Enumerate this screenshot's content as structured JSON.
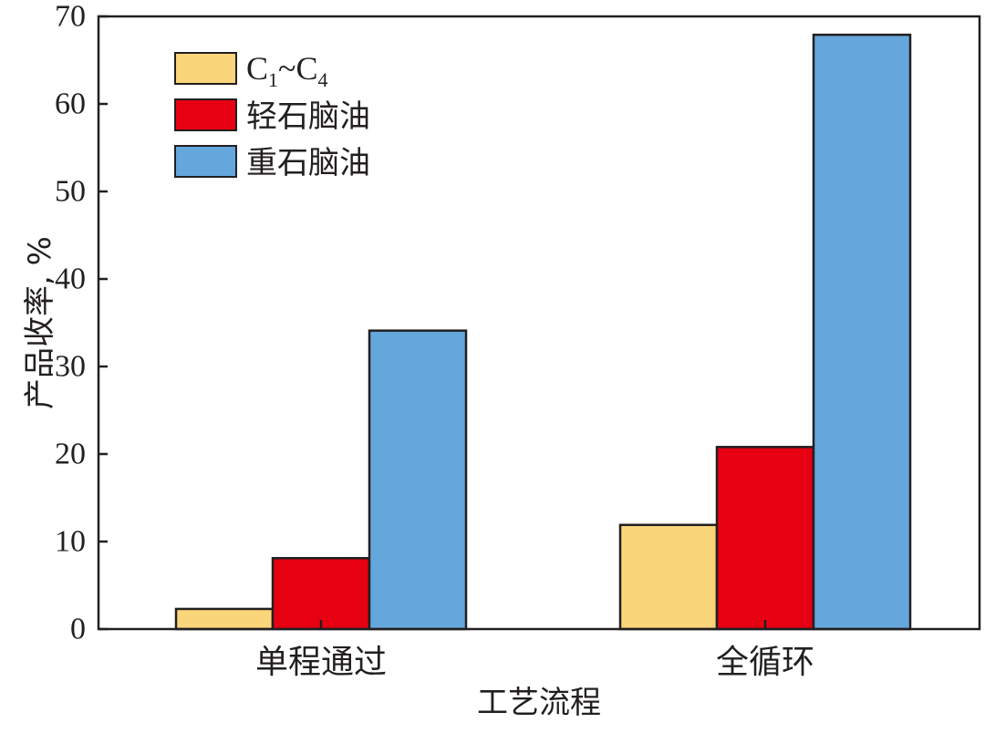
{
  "chart_data": {
    "type": "bar",
    "categories": [
      "单程通过",
      "全循环"
    ],
    "series": [
      {
        "name": "C1~C4",
        "name_main": "C",
        "name_sub1": "1",
        "name_sep": "~",
        "name_sub2": "4",
        "color": "#fbd57a",
        "values": [
          2.3,
          11.9
        ]
      },
      {
        "name": "轻石脑油",
        "color": "#e60012",
        "values": [
          8.1,
          20.8
        ]
      },
      {
        "name": "重石脑油",
        "color": "#64a7dc",
        "values": [
          34.1,
          67.9
        ]
      }
    ],
    "xlabel": "工艺流程",
    "ylabel": "产品收率, %",
    "ylim": [
      0,
      70
    ],
    "yticks": [
      0,
      10,
      20,
      30,
      40,
      50,
      60,
      70
    ],
    "grid": false,
    "legend_position": "top-left"
  }
}
